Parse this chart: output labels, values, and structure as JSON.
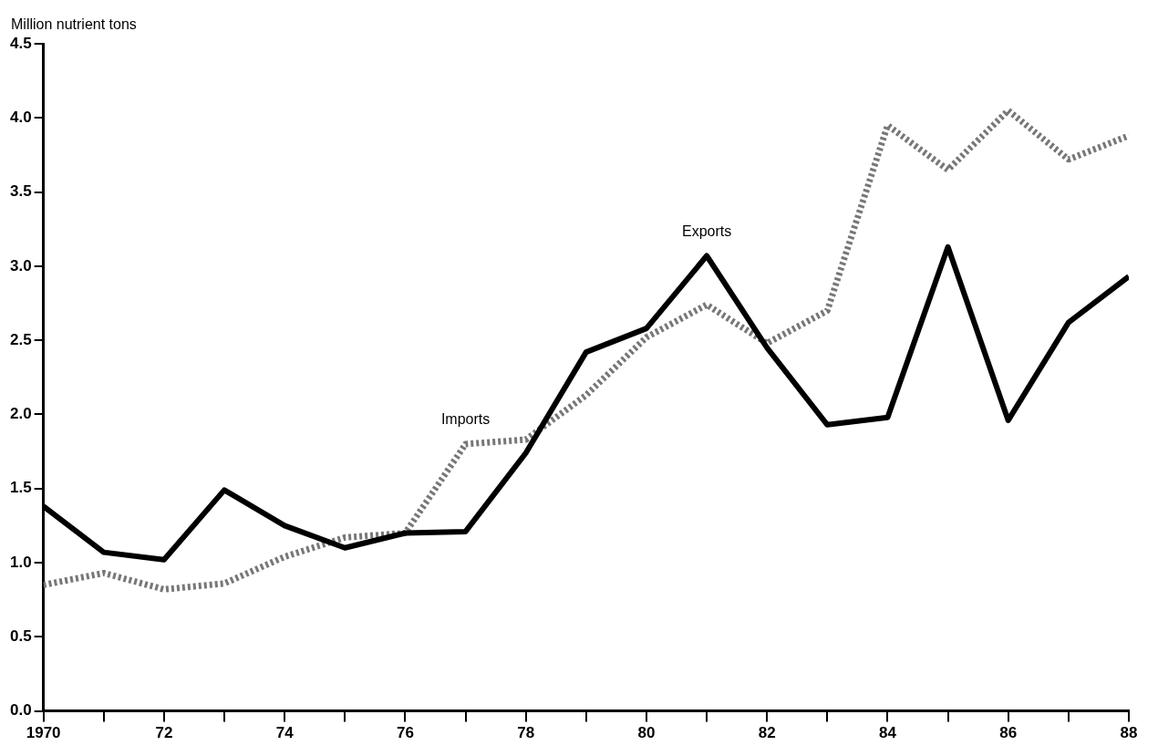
{
  "chart_data": {
    "type": "line",
    "ylabel": "Million nutrient tons",
    "x": [
      1970,
      1971,
      1972,
      1973,
      1974,
      1975,
      1976,
      1977,
      1978,
      1979,
      1980,
      1981,
      1982,
      1983,
      1984,
      1985,
      1986,
      1987,
      1988
    ],
    "series": [
      {
        "name": "Exports",
        "color": "#000000",
        "line_style": "solid",
        "values": [
          1.38,
          1.07,
          1.02,
          1.49,
          1.25,
          1.1,
          1.2,
          1.21,
          1.74,
          2.42,
          2.58,
          3.07,
          2.45,
          1.93,
          1.98,
          3.13,
          1.96,
          2.62,
          2.93
        ]
      },
      {
        "name": "Imports",
        "color": "#777777",
        "line_style": "dotted",
        "values": [
          0.85,
          0.93,
          0.82,
          0.86,
          1.04,
          1.17,
          1.2,
          1.8,
          1.83,
          2.13,
          2.52,
          2.74,
          2.48,
          2.7,
          3.95,
          3.65,
          4.05,
          3.72,
          3.88
        ]
      }
    ],
    "xlim": [
      1970,
      1988
    ],
    "xticks": [
      {
        "value": 1970,
        "label": "1970"
      },
      {
        "value": 1971,
        "label": null
      },
      {
        "value": 1972,
        "label": "72"
      },
      {
        "value": 1973,
        "label": null
      },
      {
        "value": 1974,
        "label": "74"
      },
      {
        "value": 1975,
        "label": null
      },
      {
        "value": 1976,
        "label": "76"
      },
      {
        "value": 1977,
        "label": null
      },
      {
        "value": 1978,
        "label": "78"
      },
      {
        "value": 1979,
        "label": null
      },
      {
        "value": 1980,
        "label": "80"
      },
      {
        "value": 1981,
        "label": null
      },
      {
        "value": 1982,
        "label": "82"
      },
      {
        "value": 1983,
        "label": null
      },
      {
        "value": 1984,
        "label": "84"
      },
      {
        "value": 1985,
        "label": null
      },
      {
        "value": 1986,
        "label": "86"
      },
      {
        "value": 1987,
        "label": null
      },
      {
        "value": 1988,
        "label": "88"
      }
    ],
    "ylim": [
      0,
      4.5
    ],
    "yticks": [
      {
        "value": 0,
        "label": "0.0"
      },
      {
        "value": 0.5,
        "label": "0.5"
      },
      {
        "value": 1,
        "label": "1.0"
      },
      {
        "value": 1.5,
        "label": "1.5"
      },
      {
        "value": 2,
        "label": "2.0"
      },
      {
        "value": 2.5,
        "label": "2.5"
      },
      {
        "value": 3,
        "label": "3.0"
      },
      {
        "value": 3.5,
        "label": "3.5"
      },
      {
        "value": 4,
        "label": "4.0"
      },
      {
        "value": 4.5,
        "label": "4.5"
      }
    ],
    "grid": false,
    "legend": false,
    "marker": "none"
  }
}
